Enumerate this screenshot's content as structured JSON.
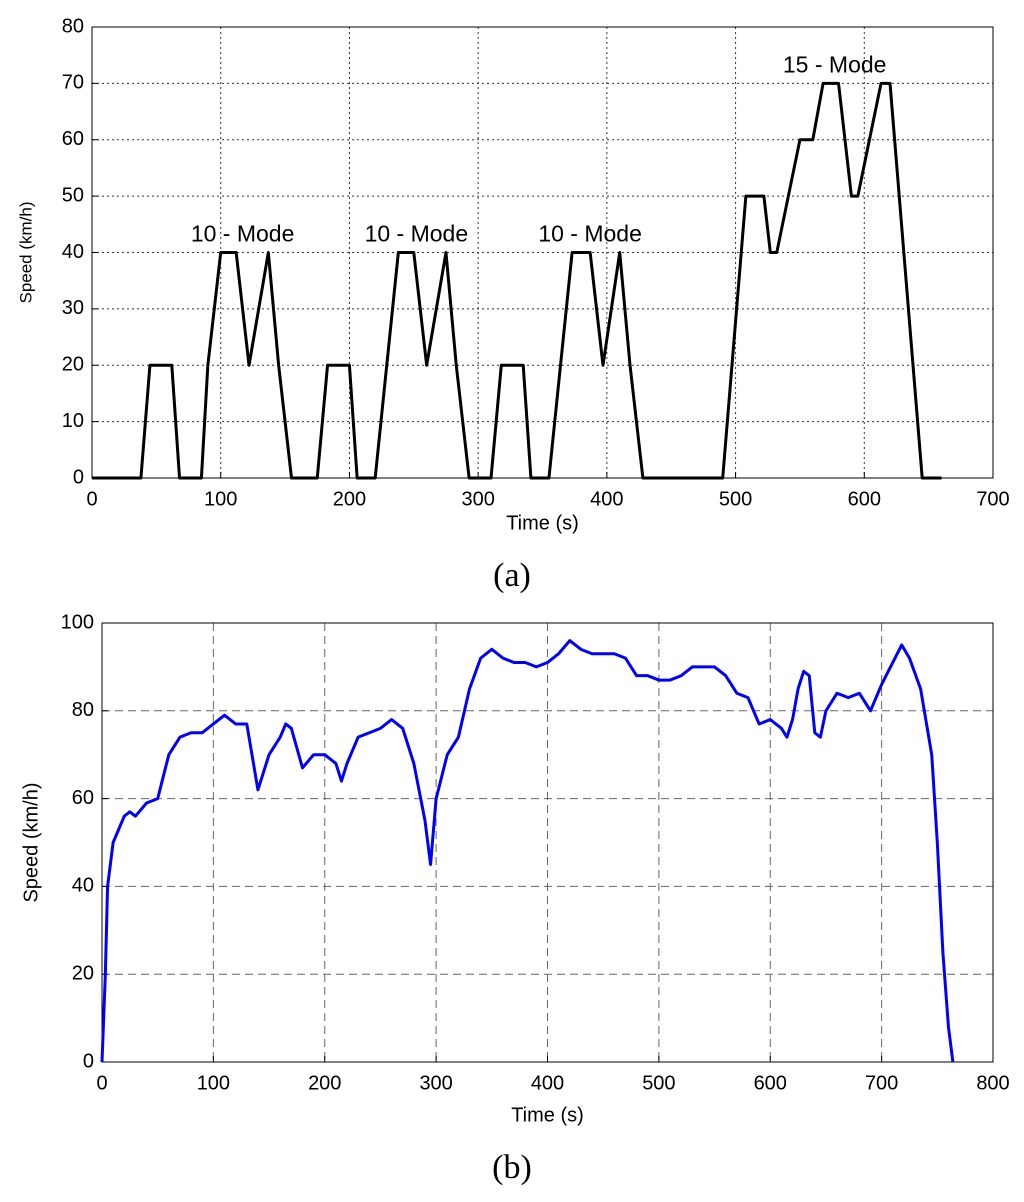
{
  "chart_data": [
    {
      "type": "line",
      "caption": "(a)",
      "x_label": "Time (s)",
      "y_label": "Speed (km/h)",
      "xlim": [
        0,
        700
      ],
      "xticks": [
        0,
        100,
        200,
        300,
        400,
        500,
        600,
        700
      ],
      "ylim": [
        0,
        80
      ],
      "yticks": [
        0,
        10,
        20,
        30,
        40,
        50,
        60,
        70,
        80
      ],
      "grid": true,
      "grid_style": "dotted",
      "color": "#000000",
      "x": [
        0,
        38,
        45,
        62,
        68,
        85,
        90,
        100,
        112,
        122,
        137,
        145,
        155,
        175,
        183,
        200,
        206,
        220,
        238,
        250,
        260,
        275,
        283,
        293,
        310,
        318,
        335,
        341,
        355,
        373,
        387,
        397,
        410,
        418,
        428,
        490,
        508,
        522,
        527,
        532,
        550,
        560,
        568,
        580,
        590,
        595,
        613,
        620,
        645,
        660
      ],
      "values": [
        0,
        0,
        20,
        20,
        0,
        0,
        20,
        40,
        40,
        20,
        40,
        20,
        0,
        0,
        20,
        20,
        0,
        0,
        40,
        40,
        20,
        40,
        20,
        0,
        0,
        20,
        20,
        0,
        0,
        40,
        40,
        20,
        40,
        20,
        0,
        0,
        50,
        50,
        40,
        40,
        60,
        60,
        70,
        70,
        50,
        50,
        70,
        70,
        0,
        0
      ],
      "annotations": [
        {
          "text": "10 - Mode",
          "x": 117,
          "y": 43
        },
        {
          "text": "10 - Mode",
          "x": 252,
          "y": 43
        },
        {
          "text": "10 - Mode",
          "x": 387,
          "y": 43
        },
        {
          "text": "15 - Mode",
          "x": 577,
          "y": 73
        }
      ]
    },
    {
      "type": "line",
      "caption": "(b)",
      "x_label": "Time (s)",
      "y_label": "Speed (km/h)",
      "xlim": [
        0,
        800
      ],
      "xticks": [
        0,
        100,
        200,
        300,
        400,
        500,
        600,
        700,
        800
      ],
      "ylim": [
        0,
        100
      ],
      "yticks": [
        0,
        20,
        40,
        60,
        80,
        100
      ],
      "grid": true,
      "grid_style": "dashed",
      "color": "#0000ff",
      "x": [
        0,
        3,
        5,
        10,
        20,
        25,
        30,
        40,
        50,
        60,
        70,
        80,
        90,
        100,
        110,
        120,
        130,
        140,
        150,
        160,
        165,
        170,
        180,
        190,
        200,
        210,
        215,
        220,
        230,
        240,
        250,
        260,
        270,
        280,
        290,
        295,
        300,
        310,
        320,
        330,
        340,
        350,
        360,
        370,
        380,
        390,
        400,
        410,
        420,
        430,
        440,
        450,
        460,
        470,
        480,
        490,
        500,
        510,
        520,
        530,
        540,
        550,
        560,
        570,
        580,
        590,
        600,
        610,
        615,
        620,
        625,
        630,
        635,
        640,
        645,
        650,
        660,
        670,
        680,
        690,
        700,
        710,
        718,
        725,
        735,
        745,
        750,
        755,
        760,
        764
      ],
      "values": [
        0,
        20,
        40,
        50,
        56,
        57,
        56,
        59,
        60,
        70,
        74,
        75,
        75,
        77,
        79,
        77,
        77,
        62,
        70,
        74,
        77,
        76,
        67,
        70,
        70,
        68,
        64,
        68,
        74,
        75,
        76,
        78,
        76,
        68,
        55,
        45,
        60,
        70,
        74,
        85,
        92,
        94,
        92,
        91,
        91,
        90,
        91,
        93,
        96,
        94,
        93,
        93,
        93,
        92,
        88,
        88,
        87,
        87,
        88,
        90,
        90,
        90,
        88,
        84,
        83,
        77,
        78,
        76,
        74,
        78,
        85,
        89,
        88,
        75,
        74,
        80,
        84,
        83,
        84,
        80,
        86,
        91,
        95,
        92,
        85,
        70,
        50,
        25,
        8,
        0
      ]
    }
  ]
}
